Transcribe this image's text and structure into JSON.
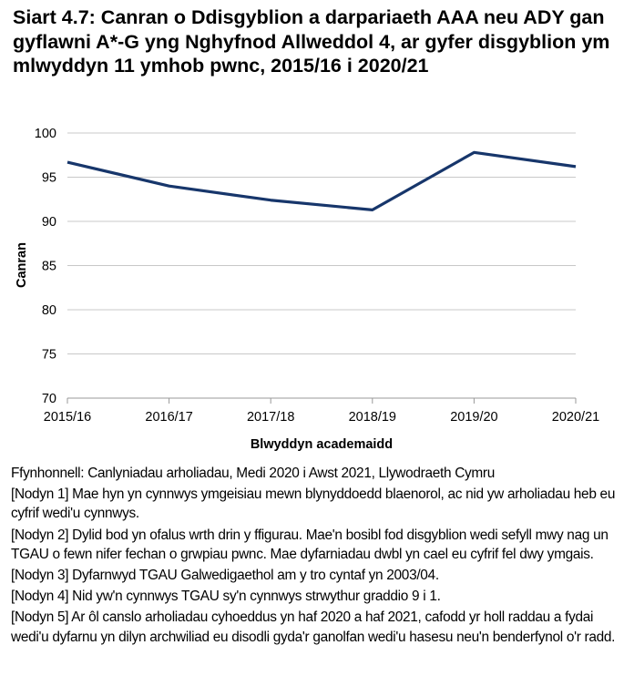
{
  "chart_data": {
    "type": "line",
    "title": "Siart 4.7: Canran o Ddisgyblion a darpariaeth AAA neu ADY gan gyflawni A*-G yng Nghyfnod Allweddol 4, ar gyfer disgyblion ym mlwyddyn 11 ymhob pwnc, 2015/16 i 2020/21",
    "xlabel": "Blwyddyn academaidd",
    "ylabel": "Canran",
    "categories": [
      "2015/16",
      "2016/17",
      "2017/18",
      "2018/19",
      "2019/20",
      "2020/21"
    ],
    "series": [
      {
        "values": [
          96.7,
          94.0,
          92.4,
          91.3,
          97.8,
          96.2
        ],
        "color": "#17366b"
      }
    ],
    "ylim": [
      70,
      100
    ],
    "yticks": [
      70,
      75,
      80,
      85,
      90,
      95,
      100
    ],
    "grid": true,
    "legend": "none"
  },
  "notes": {
    "source": "Ffynhonnell: Canlyniadau arholiadau, Medi 2020 i Awst 2021, Llywodraeth Cymru",
    "items": [
      "[Nodyn 1] Mae hyn yn cynnwys ymgeisiau mewn blynyddoedd blaenorol, ac nid yw arholiadau heb eu cyfrif wedi'u cynnwys.",
      "[Nodyn 2] Dylid bod yn ofalus wrth drin y ffigurau. Mae'n bosibl fod disgyblion wedi sefyll mwy nag un TGAU o fewn nifer fechan o grwpiau pwnc. Mae dyfarniadau dwbl yn cael eu cyfrif fel dwy ymgais.",
      "[Nodyn 3] Dyfarnwyd TGAU Galwedigaethol am y tro cyntaf yn 2003/04.",
      "[Nodyn 4] Nid yw'n cynnwys TGAU sy'n cynnwys strwythur graddio 9 i 1.",
      "[Nodyn 5]  Ar ôl canslo arholiadau cyhoeddus yn haf 2020 a haf 2021, cafodd yr holl raddau a fydai wedi'u dyfarnu yn dilyn archwiliad eu disodli gyda'r ganolfan wedi'u hasesu neu'n benderfynol o'r radd."
    ]
  }
}
